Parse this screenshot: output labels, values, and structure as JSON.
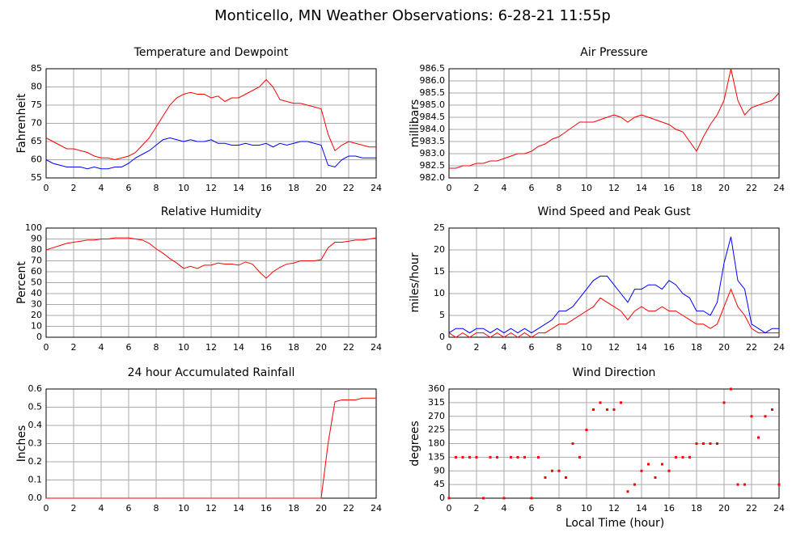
{
  "title": "Monticello, MN Weather Observations: 6-28-21 11:55p",
  "chart_data": [
    {
      "type": "line",
      "title": "Temperature and Dewpoint",
      "ylabel": "Fahrenheit",
      "grid": true,
      "x": [
        0,
        0.5,
        1,
        1.5,
        2,
        2.5,
        3,
        3.5,
        4,
        4.5,
        5,
        5.5,
        6,
        6.5,
        7,
        7.5,
        8,
        8.5,
        9,
        9.5,
        10,
        10.5,
        11,
        11.5,
        12,
        12.5,
        13,
        13.5,
        14,
        14.5,
        15,
        15.5,
        16,
        16.5,
        17,
        17.5,
        18,
        18.5,
        19,
        19.5,
        20,
        20.5,
        21,
        21.5,
        22,
        22.5,
        23,
        23.5,
        24
      ],
      "xlim": [
        0,
        24
      ],
      "xticks": [
        0,
        2,
        4,
        6,
        8,
        10,
        12,
        14,
        16,
        18,
        20,
        22,
        24
      ],
      "ylim": [
        55,
        85
      ],
      "yticks": [
        55,
        60,
        65,
        70,
        75,
        80,
        85
      ],
      "series": [
        {
          "color": "#ff0000",
          "values": [
            66,
            65,
            64,
            63,
            63,
            62.5,
            62,
            61,
            60.5,
            60.5,
            60,
            60.5,
            61,
            62,
            64,
            66,
            69,
            72,
            75,
            77,
            78,
            78.5,
            78,
            78,
            77,
            77.5,
            76,
            77,
            77,
            78,
            79,
            80,
            82,
            80,
            76.5,
            76,
            75.5,
            75.5,
            75,
            74.5,
            74,
            67,
            62.5,
            64,
            65,
            64.5,
            64,
            63.5,
            63.5
          ]
        },
        {
          "color": "#0000ff",
          "values": [
            60,
            59,
            58.5,
            58,
            58,
            58,
            57.5,
            58,
            57.5,
            57.5,
            58,
            58,
            59,
            60.5,
            61.5,
            62.5,
            64,
            65.5,
            66,
            65.5,
            65,
            65.5,
            65,
            65,
            65.5,
            64.5,
            64.5,
            64,
            64,
            64.5,
            64,
            64,
            64.5,
            63.5,
            64.5,
            64,
            64.5,
            65,
            65,
            64.5,
            64,
            58.5,
            58,
            60,
            61,
            61,
            60.5,
            60.5,
            60.5
          ]
        }
      ]
    },
    {
      "type": "line",
      "title": "Air Pressure",
      "ylabel": "millibars",
      "grid": true,
      "x": [
        0,
        0.5,
        1,
        1.5,
        2,
        2.5,
        3,
        3.5,
        4,
        4.5,
        5,
        5.5,
        6,
        6.5,
        7,
        7.5,
        8,
        8.5,
        9,
        9.5,
        10,
        10.5,
        11,
        11.5,
        12,
        12.5,
        13,
        13.5,
        14,
        14.5,
        15,
        15.5,
        16,
        16.5,
        17,
        17.5,
        18,
        18.5,
        19,
        19.5,
        20,
        20.5,
        21,
        21.5,
        22,
        22.5,
        23,
        23.5,
        24
      ],
      "xlim": [
        0,
        24
      ],
      "xticks": [
        0,
        2,
        4,
        6,
        8,
        10,
        12,
        14,
        16,
        18,
        20,
        22,
        24
      ],
      "ylim": [
        982,
        986.5
      ],
      "yticks": [
        {
          "value": 982,
          "label": "982.0"
        },
        982.5,
        {
          "value": 983,
          "label": "983.0"
        },
        983.5,
        {
          "value": 984,
          "label": "984.0"
        },
        984.5,
        {
          "value": 985,
          "label": "985.0"
        },
        985.5,
        {
          "value": 986,
          "label": "986.0"
        },
        986.5
      ],
      "series": [
        {
          "color": "#ff0000",
          "values": [
            982.4,
            982.4,
            982.5,
            982.5,
            982.6,
            982.6,
            982.7,
            982.7,
            982.8,
            982.9,
            983.0,
            983.0,
            983.1,
            983.3,
            983.4,
            983.6,
            983.7,
            983.9,
            984.1,
            984.3,
            984.3,
            984.3,
            984.4,
            984.5,
            984.6,
            984.5,
            984.3,
            984.5,
            984.6,
            984.5,
            984.4,
            984.3,
            984.2,
            984.0,
            983.9,
            983.5,
            983.1,
            983.7,
            984.2,
            984.6,
            985.2,
            986.5,
            985.2,
            984.6,
            984.9,
            985.0,
            985.1,
            985.2,
            985.5
          ]
        }
      ]
    },
    {
      "type": "line",
      "title": "Relative Humidity",
      "ylabel": "Percent",
      "grid": true,
      "x": [
        0,
        0.5,
        1,
        1.5,
        2,
        2.5,
        3,
        3.5,
        4,
        4.5,
        5,
        5.5,
        6,
        6.5,
        7,
        7.5,
        8,
        8.5,
        9,
        9.5,
        10,
        10.5,
        11,
        11.5,
        12,
        12.5,
        13,
        13.5,
        14,
        14.5,
        15,
        15.5,
        16,
        16.5,
        17,
        17.5,
        18,
        18.5,
        19,
        19.5,
        20,
        20.5,
        21,
        21.5,
        22,
        22.5,
        23,
        23.5,
        24
      ],
      "xlim": [
        0,
        24
      ],
      "xticks": [
        0,
        2,
        4,
        6,
        8,
        10,
        12,
        14,
        16,
        18,
        20,
        22,
        24
      ],
      "ylim": [
        0,
        100
      ],
      "yticks": [
        0,
        10,
        20,
        30,
        40,
        50,
        60,
        70,
        80,
        90,
        100
      ],
      "series": [
        {
          "color": "#ff0000",
          "values": [
            80,
            82,
            84,
            86,
            87,
            88,
            89,
            89,
            90,
            90,
            91,
            91,
            91,
            90,
            89,
            86,
            81,
            77,
            72,
            68,
            63,
            65,
            63,
            66,
            66,
            68,
            67,
            67,
            66,
            69,
            67,
            60,
            54,
            60,
            64,
            67,
            68,
            70,
            70,
            70,
            71,
            82,
            87,
            87,
            88,
            89,
            89,
            90,
            91
          ]
        }
      ]
    },
    {
      "type": "line",
      "title": "Wind Speed and Peak Gust",
      "ylabel": "miles/hour",
      "grid": true,
      "x": [
        0,
        0.5,
        1,
        1.5,
        2,
        2.5,
        3,
        3.5,
        4,
        4.5,
        5,
        5.5,
        6,
        6.5,
        7,
        7.5,
        8,
        8.5,
        9,
        9.5,
        10,
        10.5,
        11,
        11.5,
        12,
        12.5,
        13,
        13.5,
        14,
        14.5,
        15,
        15.5,
        16,
        16.5,
        17,
        17.5,
        18,
        18.5,
        19,
        19.5,
        20,
        20.5,
        21,
        21.5,
        22,
        22.5,
        23,
        23.5,
        24
      ],
      "xlim": [
        0,
        24
      ],
      "xticks": [
        0,
        2,
        4,
        6,
        8,
        10,
        12,
        14,
        16,
        18,
        20,
        22,
        24
      ],
      "ylim": [
        0,
        25
      ],
      "yticks": [
        0,
        5,
        10,
        15,
        20,
        25
      ],
      "series": [
        {
          "color": "#ff0000",
          "values": [
            1,
            0,
            1,
            0,
            1,
            1,
            0,
            1,
            0,
            1,
            0,
            1,
            0,
            1,
            1,
            2,
            3,
            3,
            4,
            5,
            6,
            7,
            9,
            8,
            7,
            6,
            4,
            6,
            7,
            6,
            6,
            7,
            6,
            6,
            5,
            4,
            3,
            3,
            2,
            3,
            7,
            11,
            7,
            5,
            2,
            1,
            1,
            1,
            1
          ]
        },
        {
          "color": "#0000ff",
          "values": [
            1,
            2,
            2,
            1,
            2,
            2,
            1,
            2,
            1,
            2,
            1,
            2,
            1,
            2,
            3,
            4,
            6,
            6,
            7,
            9,
            11,
            13,
            14,
            14,
            12,
            10,
            8,
            11,
            11,
            12,
            12,
            11,
            13,
            12,
            10,
            9,
            6,
            6,
            5,
            8,
            17,
            23,
            13,
            11,
            3,
            2,
            1,
            2,
            2
          ]
        }
      ]
    },
    {
      "type": "line",
      "title": "24 hour Accumulated Rainfall",
      "ylabel": "Inches",
      "grid": true,
      "x": [
        0,
        0.5,
        1,
        1.5,
        2,
        2.5,
        3,
        3.5,
        4,
        4.5,
        5,
        5.5,
        6,
        6.5,
        7,
        7.5,
        8,
        8.5,
        9,
        9.5,
        10,
        10.5,
        11,
        11.5,
        12,
        12.5,
        13,
        13.5,
        14,
        14.5,
        15,
        15.5,
        16,
        16.5,
        17,
        17.5,
        18,
        18.5,
        19,
        19.5,
        20,
        20.5,
        21,
        21.5,
        22,
        22.5,
        23,
        23.5,
        24
      ],
      "xlim": [
        0,
        24
      ],
      "xticks": [
        0,
        2,
        4,
        6,
        8,
        10,
        12,
        14,
        16,
        18,
        20,
        22,
        24
      ],
      "ylim": [
        0,
        0.6
      ],
      "yticks": [
        {
          "value": 0,
          "label": "0.0"
        },
        0.1,
        0.2,
        0.3,
        0.4,
        0.5,
        0.6
      ],
      "series": [
        {
          "color": "#ff0000",
          "values": [
            0,
            0,
            0,
            0,
            0,
            0,
            0,
            0,
            0,
            0,
            0,
            0,
            0,
            0,
            0,
            0,
            0,
            0,
            0,
            0,
            0,
            0,
            0,
            0,
            0,
            0,
            0,
            0,
            0,
            0,
            0,
            0,
            0,
            0,
            0,
            0,
            0,
            0,
            0,
            0,
            0,
            0.3,
            0.53,
            0.54,
            0.54,
            0.54,
            0.55,
            0.55,
            0.55
          ]
        }
      ]
    },
    {
      "type": "scatter",
      "title": "Wind Direction",
      "ylabel": "degrees",
      "xlabel": "Local Time (hour)",
      "grid": true,
      "x": [
        0,
        0.5,
        1,
        1.5,
        2,
        2.5,
        3,
        3.5,
        4,
        4.5,
        5,
        5.5,
        6,
        6.5,
        7,
        7.5,
        8,
        8.5,
        9,
        9.5,
        10,
        10.5,
        11,
        11.5,
        12,
        12.5,
        13,
        13.5,
        14,
        14.5,
        15,
        15.5,
        16,
        16.5,
        17,
        17.5,
        18,
        18.5,
        19,
        19.5,
        20,
        20.5,
        21,
        21.5,
        22,
        22.5,
        23,
        23.5,
        24
      ],
      "xlim": [
        0,
        24
      ],
      "xticks": [
        0,
        2,
        4,
        6,
        8,
        10,
        12,
        14,
        16,
        18,
        20,
        22,
        24
      ],
      "ylim": [
        0,
        360
      ],
      "yticks": [
        0,
        45,
        90,
        135,
        180,
        225,
        270,
        315,
        360
      ],
      "series": [
        {
          "color": "#ff0000",
          "values": [
            0,
            135,
            135,
            135,
            135,
            0,
            135,
            135,
            0,
            135,
            135,
            135,
            0,
            135,
            68,
            90,
            90,
            68,
            180,
            135,
            225,
            292,
            315,
            292,
            292,
            315,
            22,
            45,
            90,
            112,
            68,
            112,
            90,
            135,
            135,
            135,
            180,
            180,
            180,
            180,
            315,
            360,
            45,
            45,
            270,
            200,
            270,
            292,
            45
          ]
        }
      ]
    }
  ]
}
